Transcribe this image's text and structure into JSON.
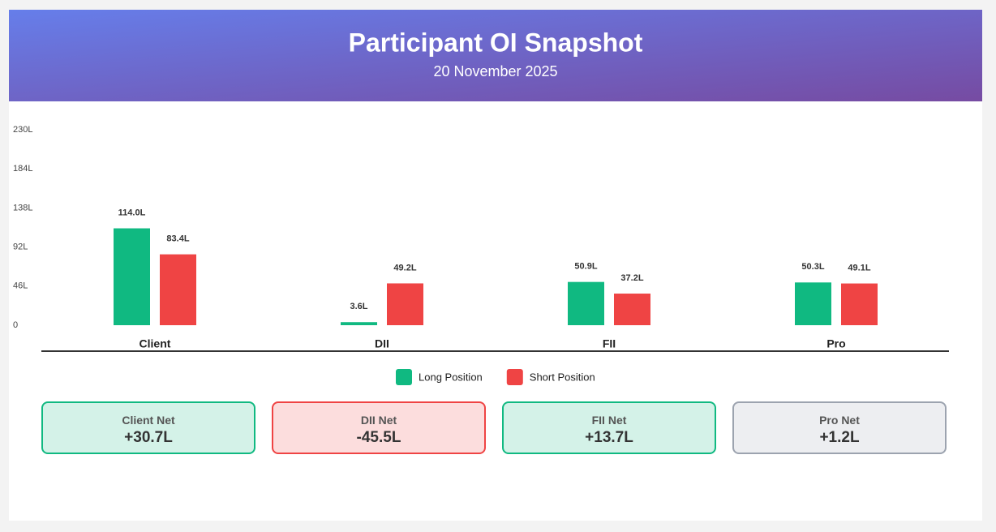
{
  "header": {
    "title": "Participant OI Snapshot",
    "subtitle": "20 November 2025"
  },
  "chart_data": {
    "type": "bar",
    "categories": [
      "Client",
      "DII",
      "FII",
      "Pro"
    ],
    "series": [
      {
        "name": "Long Position",
        "color": "#10b981",
        "values": [
          114.0,
          3.6,
          50.9,
          50.3
        ],
        "value_labels": [
          "114.0L",
          "3.6L",
          "50.9L",
          "50.3L"
        ]
      },
      {
        "name": "Short Position",
        "color": "#ef4444",
        "values": [
          83.4,
          49.2,
          37.2,
          49.1
        ],
        "value_labels": [
          "83.4L",
          "49.2L",
          "37.2L",
          "49.1L"
        ]
      }
    ],
    "ylim": [
      0,
      230
    ],
    "yticks": [
      0,
      {
        "value": 46,
        "label": "46L"
      },
      {
        "value": 92,
        "label": "92L"
      },
      {
        "value": 138,
        "label": "138L"
      },
      {
        "value": 184,
        "label": "184L"
      },
      {
        "value": 230,
        "label": "230L"
      }
    ],
    "grid": false
  },
  "net_cards": [
    {
      "label": "Client Net",
      "value": "+30.7L",
      "color": "#10b981"
    },
    {
      "label": "DII Net",
      "value": "-45.5L",
      "color": "#ef4444"
    },
    {
      "label": "FII Net",
      "value": "+13.7L",
      "color": "#10b981"
    },
    {
      "label": "Pro Net",
      "value": "+1.2L",
      "color": "#9ca3af"
    }
  ]
}
